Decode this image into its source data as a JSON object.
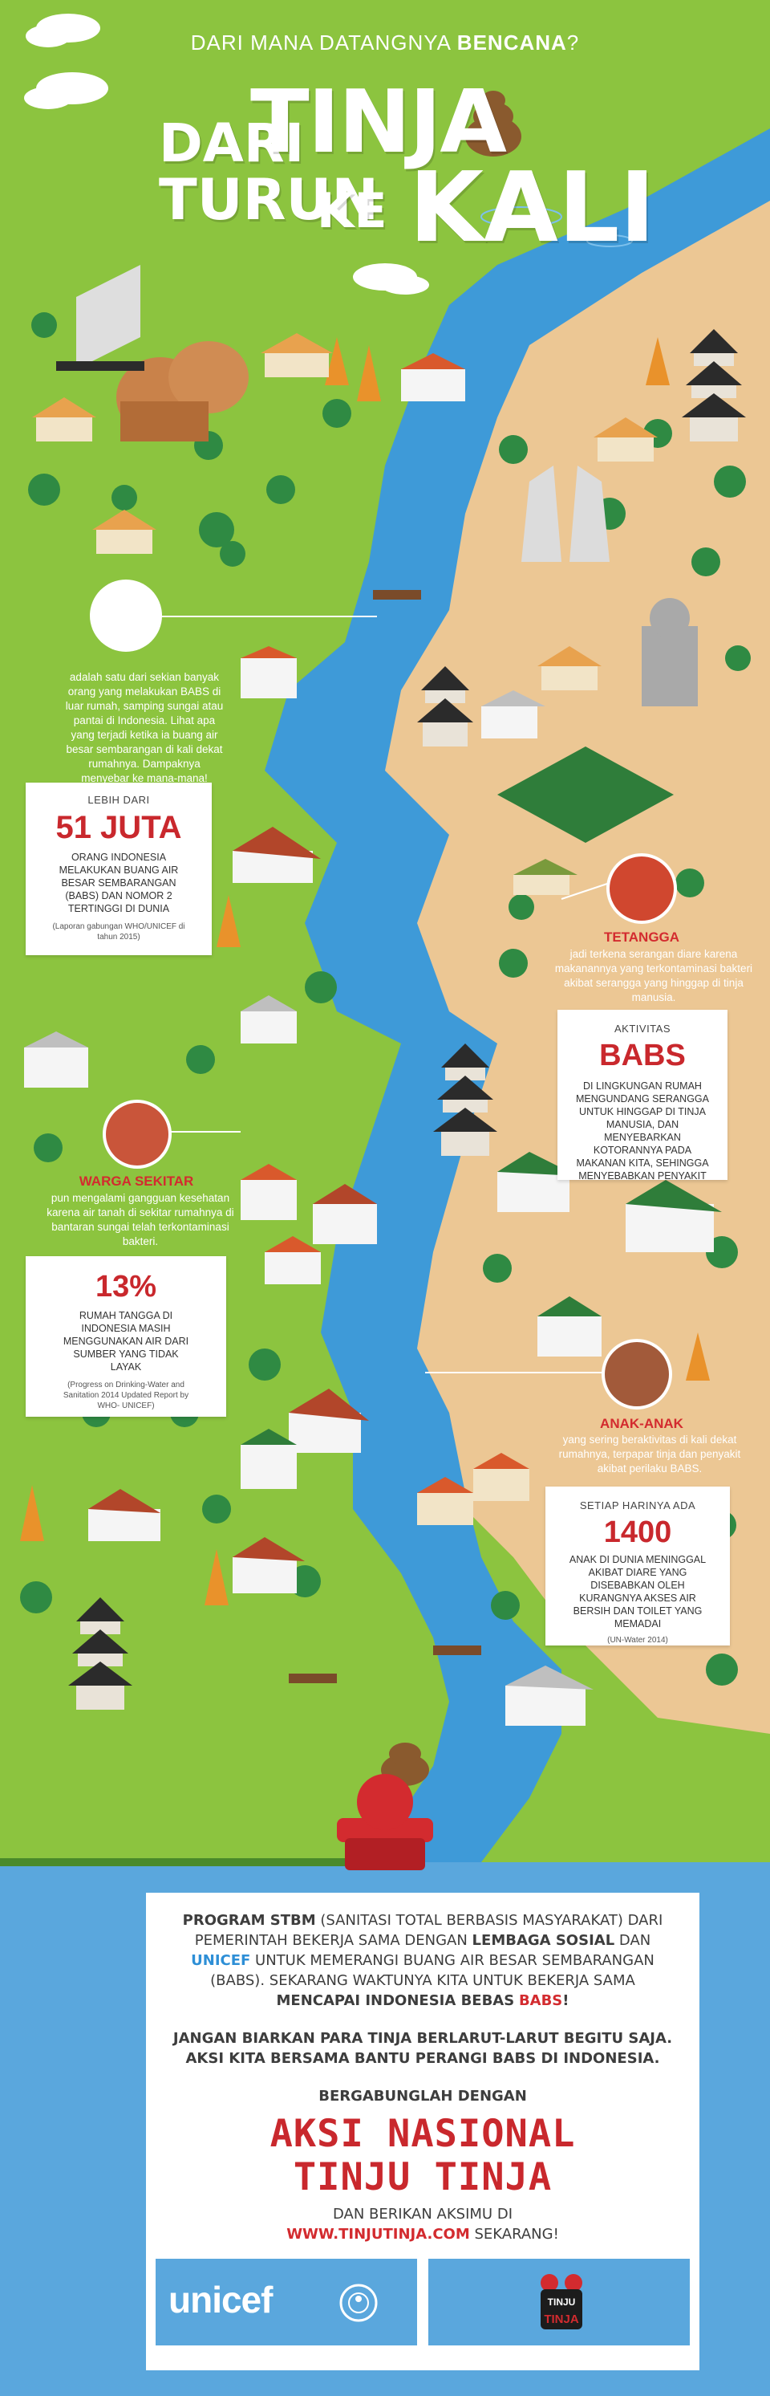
{
  "header": {
    "subtitle_prefix": "DARI MANA DATANGNYA",
    "subtitle_emphasis": "BENCANA",
    "subtitle_suffix": "?",
    "title_line1_a": "DARI",
    "title_line1_b": "TINJA",
    "title_line2_a": "TURUN",
    "title_line2_b": "KE",
    "title_line2_c": "KALI"
  },
  "intro": {
    "text": "adalah satu dari sekian banyak orang yang melakukan BABS di luar rumah, samping sungai atau pantai di Indonesia. Lihat apa yang terjadi ketika ia buang air besar sembarangan di kali dekat rumahnya. Dampaknya menyebar ke mana-mana!"
  },
  "card_51juta": {
    "label": "LEBIH DARI",
    "figure": "51 JUTA",
    "description": "ORANG INDONESIA MELAKUKAN BUANG AIR BESAR SEMBARANGAN (BABS) DAN NOMOR 2 TERTINGGI DI DUNIA",
    "source": "(Laporan gabungan WHO/UNICEF di tahun 2015)"
  },
  "tetangga": {
    "title": "TETANGGA",
    "text": "jadi terkena serangan diare karena makanannya yang terkontaminasi bakteri akibat serangga yang hinggap di tinja manusia."
  },
  "card_babs": {
    "label": "AKTIVITAS",
    "figure": "BABS",
    "description": "DI LINGKUNGAN RUMAH MENGUNDANG SERANGGA UNTUK HINGGAP DI TINJA MANUSIA, DAN MENYEBARKAN KOTORANNYA PADA MAKANAN KITA, SEHINGGA MENYEBABKAN PENYAKIT"
  },
  "warga": {
    "title": "WARGA SEKITAR",
    "text": "pun mengalami gangguan kesehatan karena air tanah di sekitar rumahnya di bantaran sungai telah terkontaminasi bakteri."
  },
  "card_13": {
    "figure": "13%",
    "description": "RUMAH TANGGA DI INDONESIA MASIH MENGGUNAKAN AIR DARI SUMBER YANG TIDAK LAYAK",
    "source": "(Progress on Drinking-Water and Sanitation 2014 Updated Report by WHO- UNICEF)"
  },
  "anak": {
    "title": "ANAK-ANAK",
    "text": "yang sering beraktivitas di kali dekat rumahnya, terpapar tinja dan penyakit akibat perilaku BABS."
  },
  "card_1400": {
    "label": "SETIAP HARINYA ADA",
    "figure": "1400",
    "description": "ANAK DI DUNIA MENINGGAL AKIBAT DIARE YANG DISEBABKAN OLEH KURANGNYA AKSES AIR BERSIH DAN TOILET YANG MEMADAI",
    "source": "(UN-Water 2014)"
  },
  "bottom": {
    "p1_a": "PROGRAM STBM",
    "p1_b": " (SANITASI TOTAL BERBASIS MASYARAKAT) DARI PEMERINTAH BEKERJA SAMA DENGAN ",
    "p1_c": "LEMBAGA SOSIAL",
    "p1_d": " DAN ",
    "p1_e": "UNICEF",
    "p1_f": " UNTUK MEMERANGI BUANG AIR BESAR SEMBARANGAN (BABS). SEKARANG WAKTUNYA KITA UNTUK BEKERJA SAMA ",
    "p1_g": "MENCAPAI INDONESIA BEBAS",
    "p1_h": " ",
    "p1_i": "BABS",
    "p1_j": "!",
    "p2": "JANGAN BIARKAN PARA TINJA BERLARUT-LARUT BEGITU SAJA. AKSI KITA BERSAMA BANTU PERANGI BABS DI INDONESIA.",
    "join": "BERGABUNGLAH DENGAN",
    "aksi_line1": "AKSI NASIONAL",
    "aksi_line2": "TINJU TINJA",
    "cta_prefix": "DAN BERIKAN AKSIMU DI",
    "cta_url": "WWW.TINJUTINJA.COM",
    "cta_suffix": " SEKARANG!",
    "logo_unicef": "unicef",
    "logo_tinju": "TINJU",
    "logo_tinja": "TINJA"
  },
  "colors": {
    "grass": "#8cc43f",
    "river": "#3e9ad8",
    "sand": "#ecc794",
    "sky": "#5aa7dd",
    "red": "#c9282d"
  }
}
